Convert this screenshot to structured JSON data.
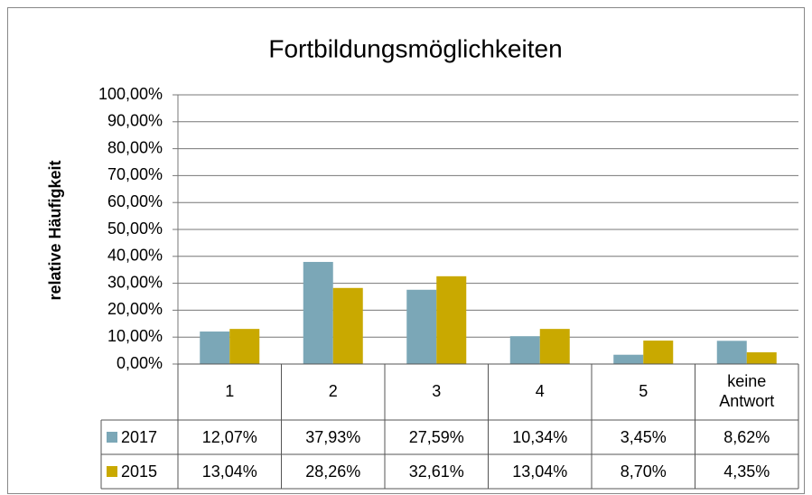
{
  "chart_data": {
    "type": "bar",
    "title": "Fortbildungsmöglichkeiten",
    "y_label": "relative Häufigkeit",
    "categories": [
      [
        "1"
      ],
      [
        "2"
      ],
      [
        "3"
      ],
      [
        "4"
      ],
      [
        "5"
      ],
      [
        "keine",
        "Antwort"
      ]
    ],
    "series": [
      {
        "name": "2017",
        "color": "#7ba7b7",
        "values": [
          12.07,
          37.93,
          27.59,
          10.34,
          3.45,
          8.62
        ],
        "value_labels": [
          "12,07%",
          "37,93%",
          "27,59%",
          "10,34%",
          "3,45%",
          "8,62%"
        ]
      },
      {
        "name": "2015",
        "color": "#c9a900",
        "values": [
          13.04,
          28.26,
          32.61,
          13.04,
          8.7,
          4.35
        ],
        "value_labels": [
          "13,04%",
          "28,26%",
          "32,61%",
          "13,04%",
          "8,70%",
          "4,35%"
        ]
      }
    ],
    "ylim": [
      0,
      100
    ],
    "yticks": [
      {
        "value": 0,
        "label": "0,00%"
      },
      {
        "value": 10,
        "label": "10,00%"
      },
      {
        "value": 20,
        "label": "20,00%"
      },
      {
        "value": 30,
        "label": "30,00%"
      },
      {
        "value": 40,
        "label": "40,00%"
      },
      {
        "value": 50,
        "label": "50,00%"
      },
      {
        "value": 60,
        "label": "60,00%"
      },
      {
        "value": 70,
        "label": "70,00%"
      },
      {
        "value": 80,
        "label": "80,00%"
      },
      {
        "value": 90,
        "label": "90,00%"
      },
      {
        "value": 100,
        "label": "100,00%"
      }
    ],
    "grid": true
  }
}
